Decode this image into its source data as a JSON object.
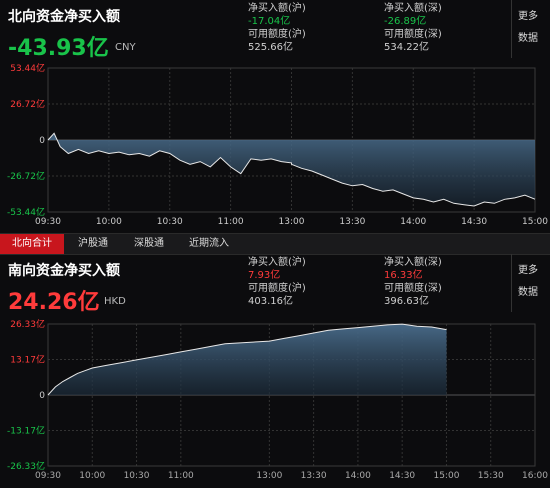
{
  "north": {
    "title": "北向资金净买入额",
    "net_value": "-43.93亿",
    "currency": "CNY",
    "sh_label": "净买入额(沪)",
    "sh_value": "-17.04亿",
    "sz_label": "净买入额(深)",
    "sz_value": "-26.89亿",
    "sh_quota_label": "可用额度(沪)",
    "sh_quota_value": "525.66亿",
    "sz_quota_label": "可用额度(深)",
    "sz_quota_value": "534.22亿",
    "more_label_1": "更多",
    "more_label_2": "数据",
    "y_ticks": [
      "53.44亿",
      "26.72亿",
      "0",
      "-26.72亿",
      "-53.44亿"
    ],
    "x_ticks": [
      "09:30",
      "10:00",
      "10:30",
      "11:00",
      "13:00",
      "13:30",
      "14:00",
      "14:30",
      "15:00"
    ]
  },
  "tabs": [
    {
      "label": "北向合计",
      "active": true
    },
    {
      "label": "沪股通",
      "active": false
    },
    {
      "label": "深股通",
      "active": false
    },
    {
      "label": "近期流入",
      "active": false
    }
  ],
  "south": {
    "title": "南向资金净买入额",
    "net_value": "24.26亿",
    "currency": "HKD",
    "sh_label": "净买入额(沪)",
    "sh_value": "7.93亿",
    "sz_label": "净买入额(深)",
    "sz_value": "16.33亿",
    "sh_quota_label": "可用额度(沪)",
    "sh_quota_value": "403.16亿",
    "sz_quota_label": "可用额度(深)",
    "sz_quota_value": "396.63亿",
    "more_label_1": "更多",
    "more_label_2": "数据",
    "y_ticks": [
      "26.33亿",
      "13.17亿",
      "0",
      "-13.17亿",
      "-26.33亿"
    ],
    "x_ticks": [
      "09:30",
      "10:00",
      "10:30",
      "11:00",
      "13:00",
      "13:30",
      "14:00",
      "14:30",
      "15:00",
      "15:30",
      "16:00"
    ]
  },
  "chart_data": [
    {
      "type": "area",
      "ylim": [
        -53.44,
        53.44
      ],
      "x": [
        "09:30",
        "09:33",
        "09:36",
        "09:40",
        "09:45",
        "09:50",
        "09:55",
        "10:00",
        "10:05",
        "10:10",
        "10:15",
        "10:20",
        "10:25",
        "10:30",
        "10:35",
        "10:40",
        "10:45",
        "10:50",
        "10:55",
        "11:00",
        "11:05",
        "11:10",
        "11:15",
        "11:20",
        "11:25",
        "11:30",
        "13:00",
        "13:05",
        "13:10",
        "13:15",
        "13:20",
        "13:25",
        "13:30",
        "13:35",
        "13:40",
        "13:45",
        "13:50",
        "13:55",
        "14:00",
        "14:05",
        "14:10",
        "14:15",
        "14:20",
        "14:25",
        "14:30",
        "14:35",
        "14:40",
        "14:45",
        "14:50",
        "14:55",
        "15:00"
      ],
      "values": [
        0,
        5,
        -5,
        -10,
        -7,
        -10,
        -8,
        -10,
        -9,
        -11,
        -10,
        -12,
        -8,
        -10,
        -15,
        -18,
        -16,
        -20,
        -13,
        -20,
        -25,
        -14,
        -15,
        -14,
        -16,
        -17,
        -18,
        -21,
        -23,
        -26,
        -29,
        -32,
        -34,
        -33,
        -36,
        -38,
        -37,
        -40,
        -43,
        -44,
        -46,
        -44,
        -47,
        -48,
        -49,
        -46,
        -47,
        -44,
        -43,
        -41,
        -43.93
      ]
    },
    {
      "type": "area",
      "ylim": [
        -26.33,
        26.33
      ],
      "x": [
        "09:30",
        "09:35",
        "09:40",
        "09:45",
        "09:50",
        "09:55",
        "10:00",
        "10:10",
        "10:20",
        "10:30",
        "10:40",
        "10:50",
        "11:00",
        "11:10",
        "11:20",
        "11:30",
        "13:00",
        "13:10",
        "13:20",
        "13:30",
        "13:40",
        "13:50",
        "14:00",
        "14:10",
        "14:20",
        "14:30",
        "14:40",
        "14:50",
        "15:00"
      ],
      "values": [
        0,
        3,
        5,
        6.5,
        8,
        9,
        10,
        11,
        12,
        13,
        14,
        15,
        16,
        17,
        18,
        19,
        20,
        21,
        22,
        23,
        24,
        24.5,
        25,
        25.5,
        26,
        26.3,
        25.5,
        25.2,
        24.26
      ]
    }
  ]
}
